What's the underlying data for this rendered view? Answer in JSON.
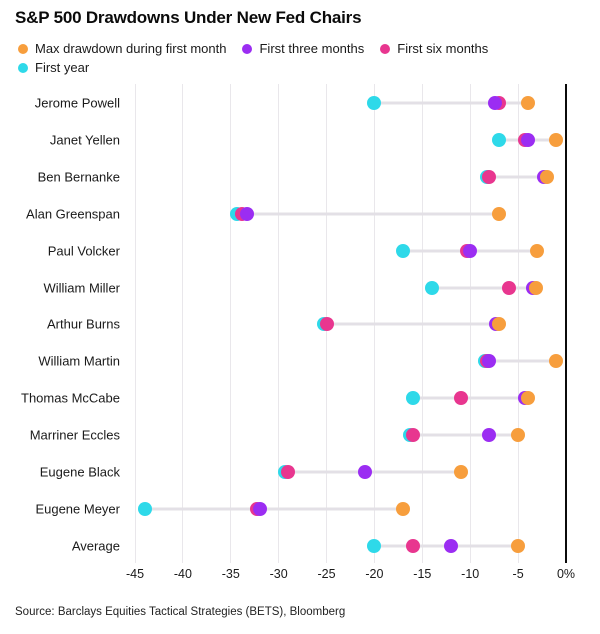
{
  "title": "S&P 500 Drawdowns Under New Fed Chairs",
  "source": "Source: Barclays Equities Tactical Strategies (BETS), Bloomberg",
  "chart_data": {
    "type": "scatter",
    "title": "S&P 500 Drawdowns Under New Fed Chairs",
    "unit": "%",
    "grid": "vertical-gridlines",
    "legend_position": "top",
    "legend_rows": [
      [
        0,
        1,
        2
      ],
      [
        3
      ]
    ],
    "draw_order": [
      3,
      2,
      1,
      0
    ],
    "xlim": [
      -45,
      0
    ],
    "x_ticks": [
      {
        "value": -45,
        "label": "-45"
      },
      {
        "value": -40,
        "label": "-40"
      },
      {
        "value": -35,
        "label": "-35"
      },
      {
        "value": -30,
        "label": "-30"
      },
      {
        "value": -25,
        "label": "-25"
      },
      {
        "value": -20,
        "label": "-20"
      },
      {
        "value": -15,
        "label": "-15"
      },
      {
        "value": -10,
        "label": "-10"
      },
      {
        "value": -5,
        "label": "-5"
      },
      {
        "value": 0,
        "label": "0%"
      }
    ],
    "categories": [
      "Jerome Powell",
      "Janet Yellen",
      "Ben Bernanke",
      "Alan Greenspan",
      "Paul Volcker",
      "William Miller",
      "Arthur Burns",
      "William Martin",
      "Thomas McCabe",
      "Marriner Eccles",
      "Eugene Black",
      "Eugene Meyer",
      "Average"
    ],
    "series": [
      {
        "key": "first-month",
        "name": "Max drawdown during first month",
        "color": "#F79E3D",
        "values": [
          -4,
          -1,
          -2,
          -7,
          -3,
          -3.1,
          -7,
          -1,
          -4,
          -5,
          -11,
          -17,
          -5
        ]
      },
      {
        "key": "first-three-months",
        "name": "First three months",
        "color": "#9B2DF2",
        "values": [
          -7.4,
          -4,
          -2.3,
          -33.3,
          -10,
          -3.4,
          -7.3,
          -8,
          -4.3,
          -8,
          -21,
          -32,
          -12
        ]
      },
      {
        "key": "first-six-months",
        "name": "First six months",
        "color": "#E8368F",
        "values": [
          -7,
          -4.3,
          -8,
          -33.8,
          -10.3,
          -6,
          -25,
          -8.2,
          -11,
          -16,
          -29,
          -32.3,
          -16
        ]
      },
      {
        "key": "first-year",
        "name": "First year",
        "color": "#2ED9E9",
        "values": [
          -20,
          -7,
          -8.3,
          -34.4,
          -17,
          -14,
          -25.3,
          -8.5,
          -16,
          -16.3,
          -29.3,
          -44,
          -20
        ]
      }
    ]
  }
}
